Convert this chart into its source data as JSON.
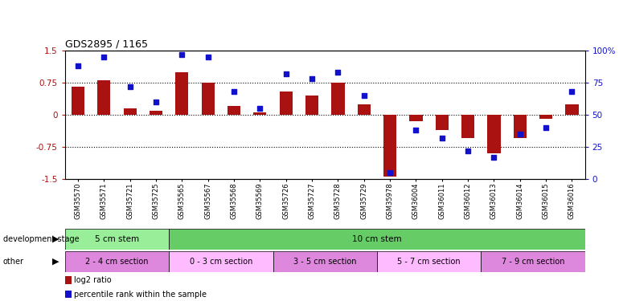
{
  "title": "GDS2895 / 1165",
  "samples": [
    "GSM35570",
    "GSM35571",
    "GSM35721",
    "GSM35725",
    "GSM35565",
    "GSM35567",
    "GSM35568",
    "GSM35569",
    "GSM35726",
    "GSM35727",
    "GSM35728",
    "GSM35729",
    "GSM35978",
    "GSM36004",
    "GSM36011",
    "GSM36012",
    "GSM36013",
    "GSM36014",
    "GSM36015",
    "GSM36016"
  ],
  "log2_ratio": [
    0.65,
    0.8,
    0.15,
    0.1,
    1.0,
    0.75,
    0.2,
    0.05,
    0.55,
    0.45,
    0.75,
    0.25,
    -1.45,
    -0.15,
    -0.35,
    -0.55,
    -0.9,
    -0.55,
    -0.1,
    0.25
  ],
  "percentile": [
    88,
    95,
    72,
    60,
    97,
    95,
    68,
    55,
    82,
    78,
    83,
    65,
    5,
    38,
    32,
    22,
    17,
    35,
    40,
    68
  ],
  "bar_color": "#aa1111",
  "dot_color": "#1111cc",
  "ylim_left": [
    -1.5,
    1.5
  ],
  "yticks_left": [
    -1.5,
    -0.75,
    0.0,
    0.75,
    1.5
  ],
  "ytick_labels_left": [
    "-1.5",
    "-0.75",
    "0",
    "0.75",
    "1.5"
  ],
  "ylim_right": [
    0,
    100
  ],
  "yticks_right": [
    0,
    25,
    50,
    75,
    100
  ],
  "ytick_labels_right": [
    "0",
    "25",
    "50",
    "75",
    "100%"
  ],
  "hlines": [
    0.75,
    0.0,
    -0.75
  ],
  "development_stage_groups": [
    {
      "label": "5 cm stem",
      "start": 0,
      "end": 4,
      "color": "#99ee99"
    },
    {
      "label": "10 cm stem",
      "start": 4,
      "end": 20,
      "color": "#66cc66"
    }
  ],
  "other_groups": [
    {
      "label": "2 - 4 cm section",
      "start": 0,
      "end": 4,
      "color": "#dd88dd"
    },
    {
      "label": "0 - 3 cm section",
      "start": 4,
      "end": 8,
      "color": "#ffbbff"
    },
    {
      "label": "3 - 5 cm section",
      "start": 8,
      "end": 12,
      "color": "#dd88dd"
    },
    {
      "label": "5 - 7 cm section",
      "start": 12,
      "end": 16,
      "color": "#ffbbff"
    },
    {
      "label": "7 - 9 cm section",
      "start": 16,
      "end": 20,
      "color": "#dd88dd"
    }
  ],
  "legend_items": [
    {
      "label": "log2 ratio",
      "color": "#aa1111"
    },
    {
      "label": "percentile rank within the sample",
      "color": "#1111cc"
    }
  ]
}
